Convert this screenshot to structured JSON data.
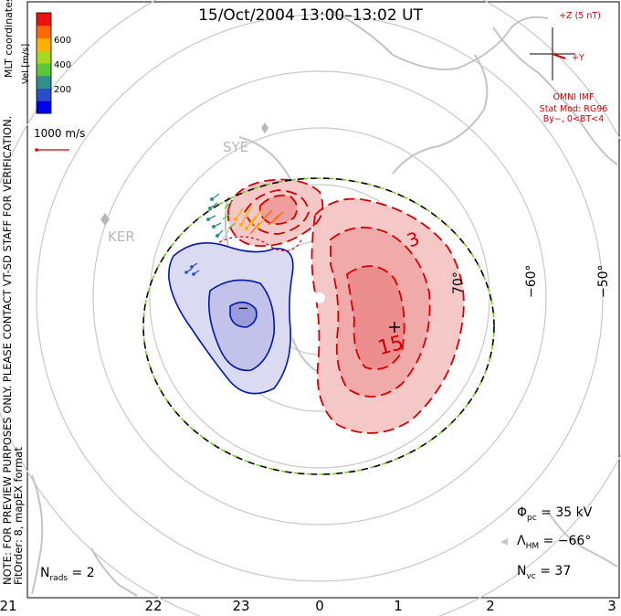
{
  "title": "15/Oct/2004 13:00–13:02 UT",
  "side_note": {
    "line1": "NOTE: FOR PREVIEW PURPOSES ONLY. PLEASE CONTACT VT-SD STAFF FOR VERIFICATION.",
    "line2": "FitOrder: 8, mapEX format"
  },
  "colorbar": {
    "title": "MLT coordinates",
    "unit": "Vel [m/s]",
    "ticks": [
      "600",
      "400",
      "200"
    ],
    "colors": [
      "#0000ee",
      "#2a4ec8",
      "#2f8f8a",
      "#5cc63a",
      "#a8d820",
      "#ffb000",
      "#ff6a00",
      "#ee1010"
    ]
  },
  "velocity_scale": "1000 m/s",
  "imf": {
    "z_label": "+Z (5 nT)",
    "y_label": "+Y",
    "source": "OMNI IMF",
    "stat_mod": "Stat Mod: RG96",
    "condition": "By−, 0<BT<4"
  },
  "stations": [
    "SYE",
    "KER"
  ],
  "contour_labels": {
    "neg": "−",
    "pos_small": "3",
    "pos_big": "15"
  },
  "longitude_labels": [
    "70°",
    "−60°",
    "−50°"
  ],
  "mlt_labels": [
    "21",
    "22",
    "23",
    "0",
    "1",
    "2",
    "3"
  ],
  "stats": {
    "phi_pc": "35 kV",
    "lambda_hm": "−66°",
    "n_vc": "37",
    "n_rads": "2"
  },
  "colors": {
    "pos_fill": "#f1a9a9",
    "neg_fill": "#b9b9e8",
    "pos_line": "#d40000",
    "neg_line": "#0018a8",
    "grid": "#c8c8c8",
    "coast": "#c4c4c4",
    "hmb_green": "#7cd42a"
  }
}
